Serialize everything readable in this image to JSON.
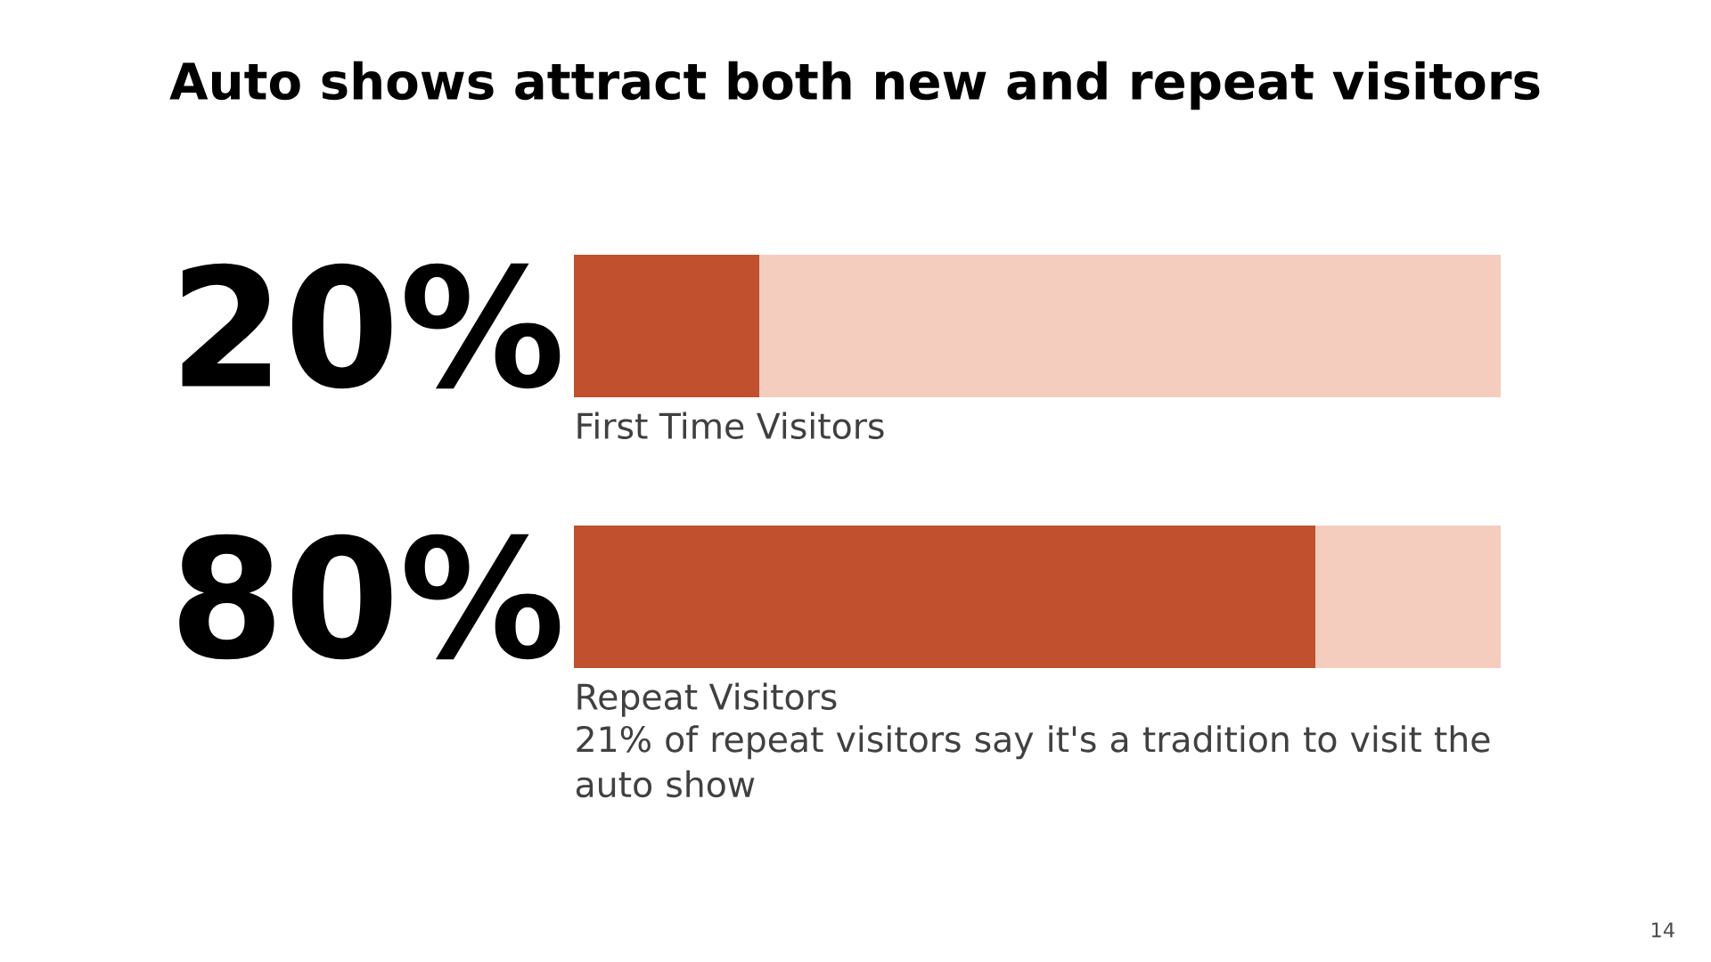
{
  "chart_data": {
    "type": "bar",
    "orientation": "horizontal",
    "stacked": true,
    "title": "Auto shows attract both new and repeat visitors",
    "categories": [
      "First Time Visitors",
      "Repeat Visitors"
    ],
    "series": [
      {
        "color": "#c0502e",
        "values": [
          20,
          80
        ],
        "value_labels": [
          "20%",
          "80%"
        ]
      },
      {
        "color": "#f4cdbf",
        "values": [
          80,
          20
        ]
      }
    ],
    "xlim": [
      0,
      100
    ],
    "annotations": [
      "21% of repeat visitors say it's a tradition to visit the auto show",
      "14"
    ]
  }
}
